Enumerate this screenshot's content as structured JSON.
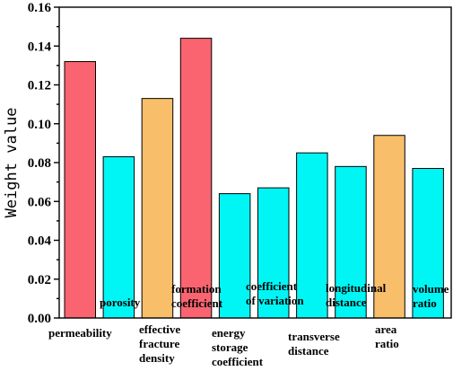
{
  "chart_data": {
    "type": "bar",
    "ylabel": "Weight value",
    "xlabel": "",
    "ylim": [
      0,
      0.16
    ],
    "yticks": [
      "0.00",
      "0.02",
      "0.04",
      "0.06",
      "0.08",
      "0.10",
      "0.12",
      "0.14",
      "0.16"
    ],
    "grid": false,
    "categories": [
      "permeability",
      "porosity",
      "effective fracture density",
      "formation coefficient",
      "energy storage coefficient",
      "coefficient of variation",
      "transverse distance",
      "longitudinal distance",
      "area ratio",
      "volume ratio"
    ],
    "values": [
      0.132,
      0.083,
      0.113,
      0.144,
      0.064,
      0.067,
      0.085,
      0.078,
      0.094,
      0.077
    ],
    "bar_colors": [
      "#f96470",
      "#00f5f5",
      "#f9be6a",
      "#f96470",
      "#00f5f5",
      "#00f5f5",
      "#00f5f5",
      "#00f5f5",
      "#f9be6a",
      "#00f5f5"
    ],
    "label_lines": [
      [
        "permeability"
      ],
      [
        "porosity"
      ],
      [
        "effective",
        "fracture",
        "density"
      ],
      [
        "formation",
        "coefficient"
      ],
      [
        "energy",
        "storage",
        "coefficient"
      ],
      [
        "coefficient",
        "of variation"
      ],
      [
        "transverse",
        "distance"
      ],
      [
        "longitudinal",
        "distance"
      ],
      [
        "area",
        "ratio"
      ],
      [
        "volume",
        "ratio"
      ]
    ]
  }
}
